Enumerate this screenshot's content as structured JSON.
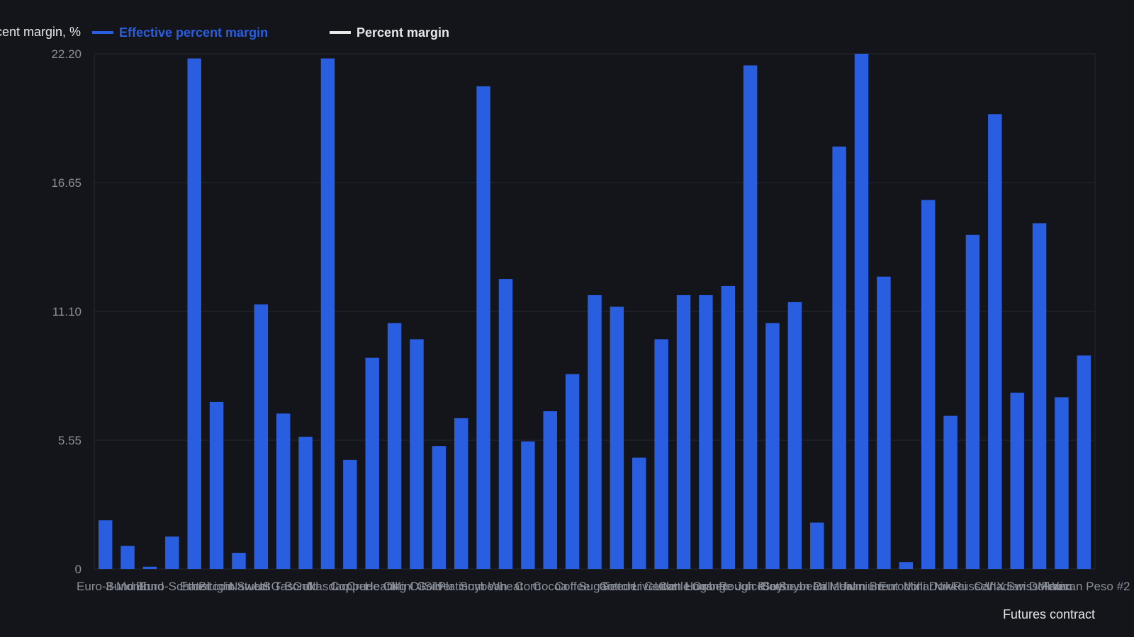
{
  "chart_data": {
    "type": "bar",
    "ylabel": "Percent margin, %",
    "xlabel": "Futures contract",
    "ylim": [
      0,
      22.2
    ],
    "yticks": [
      "0",
      "5.55",
      "11.10",
      "16.65",
      "22.20"
    ],
    "legend": [
      {
        "name": "Effective percent margin",
        "color": "#2a5ee0"
      },
      {
        "name": "Percent margin",
        "color": "#e8e8e8"
      }
    ],
    "series": [
      {
        "name": "Effective percent margin",
        "color": "#2a5ee0",
        "values": [
          2.1,
          1.0,
          0.1,
          1.4,
          22.0,
          7.2,
          0.7,
          11.4,
          6.7,
          5.7,
          22.0,
          4.7,
          9.1,
          10.6,
          9.9,
          5.3,
          6.5,
          20.8,
          12.5,
          5.5,
          6.8,
          8.4,
          11.8,
          11.3,
          4.8,
          9.9,
          11.8,
          11.8,
          12.2,
          21.7,
          10.6,
          11.5,
          2.0,
          18.2,
          22.2,
          12.6,
          0.3,
          15.9,
          6.6,
          14.4,
          19.6,
          7.6,
          14.9,
          7.4,
          9.2
        ]
      }
    ],
    "categories": [
      "Euro-Bund",
      "3-Month",
      "Bund",
      "Euro-Schatz",
      "Ether",
      "Bitcoin",
      "Light Sweet",
      "Natural Gas",
      "US T-Bond",
      "Gold",
      "Nasdaq",
      "Copper",
      "Crude Oil",
      "Heating Oil",
      "Mini Gold",
      "Silver",
      "Platinum",
      "Soybean",
      "Wheat",
      "Corn",
      "Cocoa",
      "Coffee",
      "Sugar",
      "Cotton",
      "Feeder Cattle",
      "Live Cattle",
      "Lean Hogs",
      "Lumber",
      "Orange Juice",
      "Rough Rice",
      "Oats",
      "Soybean Oil",
      "Soybean Meal",
      "Palladium",
      "Uranium",
      "Brent",
      "Eurodollar",
      "Mini Dow",
      "Nikkei",
      "Russell",
      "VIX",
      "Canadian Dollar",
      "Swiss Franc",
      "Yen",
      "Mexican Peso #2"
    ]
  }
}
